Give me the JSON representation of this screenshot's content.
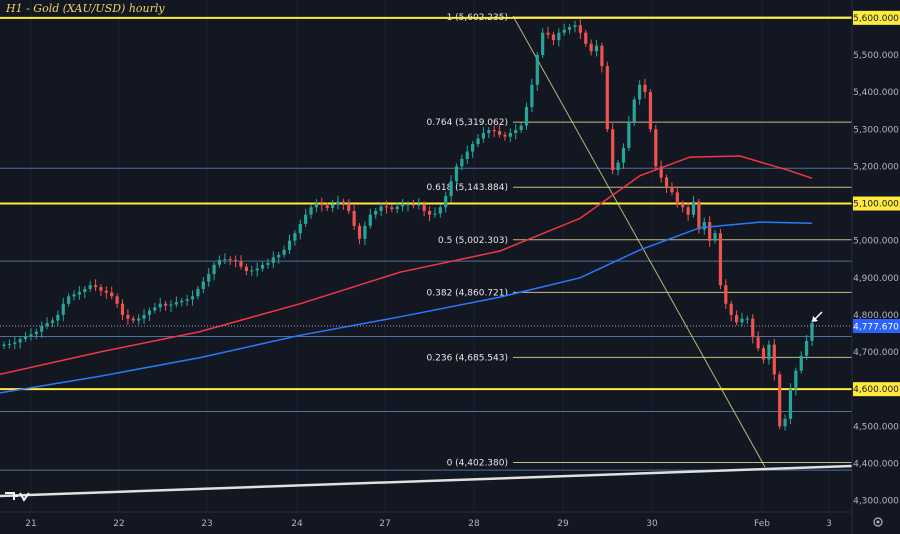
{
  "chart_data": {
    "type": "candlestick",
    "title": "H1 - Gold (XAU/USD) hourly",
    "ylim": [
      4280,
      5640
    ],
    "y_ticks": [
      4300,
      4400,
      4500,
      4600,
      4700,
      4800,
      4900,
      5000,
      5100,
      5200,
      5300,
      5400,
      5500,
      5600
    ],
    "y_tick_labels": [
      "4,300.000",
      "4,400.000",
      "4,500.000",
      "4,600.000",
      "4,700.000",
      "4,800.000",
      "4,900.000",
      "5,000.000",
      "5,100.000",
      "5,200.000",
      "5,300.000",
      "5,400.000",
      "5,500.000",
      "5,600.000"
    ],
    "x_labels": [
      "21",
      "22",
      "23",
      "24",
      "27",
      "28",
      "29",
      "30",
      "Feb",
      "3"
    ],
    "key_levels": [
      {
        "value": 5600,
        "label": "5,600.000",
        "color": "#ffeb3b"
      },
      {
        "value": 5100,
        "label": "5,100.000",
        "color": "#ffeb3b"
      },
      {
        "value": 4600,
        "label": "4,600.000",
        "color": "#ffeb3b"
      }
    ],
    "minor_levels": [
      5195,
      4945,
      4742,
      4540,
      4382
    ],
    "current_price": {
      "value": 4777.67,
      "label": "4,777.670",
      "color": "#2962ff"
    },
    "fib_levels": [
      {
        "ratio": "1",
        "value": 5602.235,
        "label": "1 (5,602.235)"
      },
      {
        "ratio": "0.764",
        "value": 5319.062,
        "label": "0.764 (5,319.062)"
      },
      {
        "ratio": "0.618",
        "value": 5143.884,
        "label": "0.618 (5,143.884)"
      },
      {
        "ratio": "0.5",
        "value": 5002.303,
        "label": "0.5 (5,002.303)"
      },
      {
        "ratio": "0.382",
        "value": 4860.721,
        "label": "0.382 (4,860.721)"
      },
      {
        "ratio": "0.236",
        "value": 4685.543,
        "label": "0.236 (4,685.543)"
      },
      {
        "ratio": "0",
        "value": 4402.38,
        "label": "0 (4,402.380)"
      }
    ],
    "candles_close": [
      4720,
      4722,
      4726,
      4735,
      4742,
      4748,
      4755,
      4770,
      4778,
      4785,
      4800,
      4830,
      4850,
      4855,
      4862,
      4870,
      4880,
      4875,
      4865,
      4860,
      4850,
      4830,
      4800,
      4790,
      4785,
      4790,
      4800,
      4812,
      4820,
      4830,
      4825,
      4828,
      4834,
      4838,
      4842,
      4850,
      4870,
      4890,
      4910,
      4935,
      4948,
      4950,
      4948,
      4945,
      4930,
      4918,
      4920,
      4925,
      4935,
      4940,
      4955,
      4962,
      4975,
      5000,
      5020,
      5045,
      5070,
      5090,
      5100,
      5095,
      5088,
      5098,
      5105,
      5100,
      5080,
      5040,
      5005,
      5040,
      5070,
      5080,
      5092,
      5090,
      5085,
      5092,
      5096,
      5098,
      5095,
      5098,
      5080,
      5070,
      5073,
      5090,
      5120,
      5160,
      5200,
      5220,
      5240,
      5260,
      5275,
      5290,
      5298,
      5295,
      5285,
      5280,
      5290,
      5298,
      5310,
      5360,
      5420,
      5500,
      5560,
      5555,
      5540,
      5560,
      5568,
      5575,
      5580,
      5560,
      5530,
      5510,
      5525,
      5470,
      5300,
      5190,
      5210,
      5250,
      5320,
      5380,
      5420,
      5400,
      5300,
      5200,
      5170,
      5145,
      5130,
      5100,
      5090,
      5070,
      5105,
      5030,
      5050,
      5000,
      5020,
      4880,
      4830,
      4800,
      4780,
      4790,
      4790,
      4740,
      4710,
      4680,
      4720,
      4640,
      4500,
      4520,
      4600,
      4650,
      4690,
      4730,
      4778
    ],
    "candles_open": [
      4716,
      4720,
      4722,
      4726,
      4735,
      4742,
      4748,
      4755,
      4770,
      4778,
      4785,
      4800,
      4830,
      4850,
      4855,
      4862,
      4870,
      4880,
      4875,
      4865,
      4860,
      4850,
      4830,
      4800,
      4790,
      4785,
      4790,
      4800,
      4812,
      4820,
      4830,
      4825,
      4828,
      4834,
      4838,
      4842,
      4850,
      4870,
      4890,
      4910,
      4935,
      4948,
      4950,
      4948,
      4945,
      4930,
      4918,
      4920,
      4925,
      4935,
      4940,
      4955,
      4962,
      4975,
      5000,
      5020,
      5045,
      5070,
      5090,
      5100,
      5095,
      5088,
      5098,
      5105,
      5100,
      5080,
      5040,
      5005,
      5040,
      5070,
      5080,
      5092,
      5090,
      5085,
      5092,
      5096,
      5098,
      5095,
      5098,
      5080,
      5070,
      5073,
      5090,
      5120,
      5160,
      5200,
      5220,
      5240,
      5260,
      5275,
      5290,
      5298,
      5295,
      5285,
      5280,
      5290,
      5298,
      5310,
      5360,
      5420,
      5500,
      5560,
      5555,
      5540,
      5560,
      5568,
      5575,
      5580,
      5560,
      5530,
      5510,
      5525,
      5470,
      5300,
      5190,
      5210,
      5250,
      5320,
      5380,
      5420,
      5400,
      5300,
      5200,
      5170,
      5145,
      5130,
      5100,
      5090,
      5070,
      5105,
      5030,
      5050,
      5000,
      5020,
      4880,
      4830,
      4800,
      4780,
      4790,
      4790,
      4740,
      4710,
      4680,
      4720,
      4640,
      4500,
      4520,
      4600,
      4650,
      4690,
      4730
    ],
    "ma_slow_blue": [
      [
        0,
        4590
      ],
      [
        100,
        4635
      ],
      [
        200,
        4685
      ],
      [
        300,
        4745
      ],
      [
        400,
        4795
      ],
      [
        500,
        4848
      ],
      [
        580,
        4900
      ],
      [
        640,
        4975
      ],
      [
        700,
        5035
      ],
      [
        760,
        5050
      ],
      [
        812,
        5047
      ]
    ],
    "ma_fast_red": [
      [
        0,
        4640
      ],
      [
        100,
        4700
      ],
      [
        200,
        4755
      ],
      [
        300,
        4830
      ],
      [
        400,
        4915
      ],
      [
        500,
        4972
      ],
      [
        580,
        5060
      ],
      [
        640,
        5175
      ],
      [
        690,
        5225
      ],
      [
        740,
        5228
      ],
      [
        790,
        5188
      ],
      [
        812,
        5168
      ]
    ]
  }
}
